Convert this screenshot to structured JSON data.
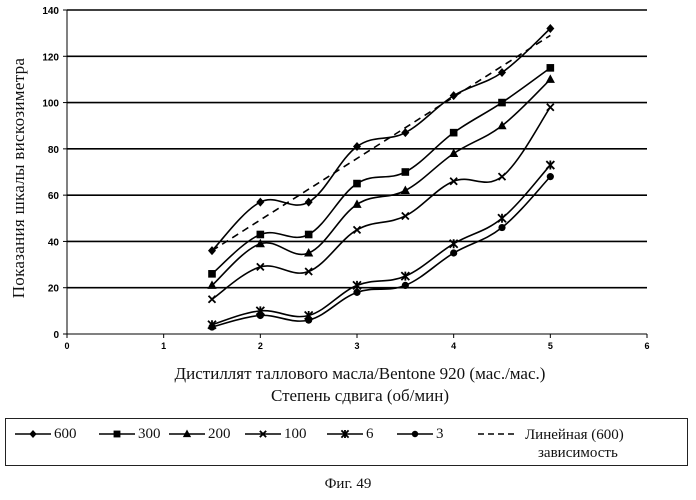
{
  "chart_data": {
    "type": "line",
    "title": "",
    "xlabel_line1": "Дистиллят таллового масла/Bentone 920 (мас./мас.)",
    "xlabel_line2": "Степень сдвига (об/мин)",
    "ylabel": "Показания шкалы вискозиметра",
    "xlim": [
      0,
      6
    ],
    "ylim": [
      0,
      140
    ],
    "x_ticks": [
      0,
      1,
      2,
      3,
      4,
      5,
      6
    ],
    "y_ticks": [
      0,
      20,
      40,
      60,
      80,
      100,
      120,
      140
    ],
    "grid": "horizontal",
    "legend_position": "bottom",
    "x": [
      1.5,
      2,
      2.5,
      3,
      3.5,
      4,
      4.5,
      5
    ],
    "series": [
      {
        "name": "600",
        "marker": "diamond",
        "color": "#000000",
        "values": [
          36,
          57,
          57,
          81,
          87,
          103,
          113,
          132
        ]
      },
      {
        "name": "300",
        "marker": "square",
        "color": "#000000",
        "values": [
          26,
          43,
          43,
          65,
          70,
          87,
          100,
          115
        ]
      },
      {
        "name": "200",
        "marker": "triangle",
        "color": "#000000",
        "values": [
          21,
          39,
          35,
          56,
          62,
          78,
          90,
          110
        ]
      },
      {
        "name": "100",
        "marker": "x",
        "color": "#000000",
        "values": [
          15,
          29,
          27,
          45,
          51,
          66,
          68,
          98
        ]
      },
      {
        "name": "6",
        "marker": "star",
        "color": "#000000",
        "values": [
          4,
          10,
          8,
          21,
          25,
          39,
          50,
          73
        ]
      },
      {
        "name": "3",
        "marker": "circle",
        "color": "#000000",
        "values": [
          3,
          8,
          6,
          18,
          21,
          35,
          46,
          68
        ]
      }
    ],
    "trendline": {
      "name_line1": "Линейная (600)",
      "name_line2": "зависимость",
      "style": "dashed",
      "from": [
        1.5,
        36
      ],
      "to": [
        5,
        129
      ]
    }
  },
  "caption": "Фиг. 49"
}
